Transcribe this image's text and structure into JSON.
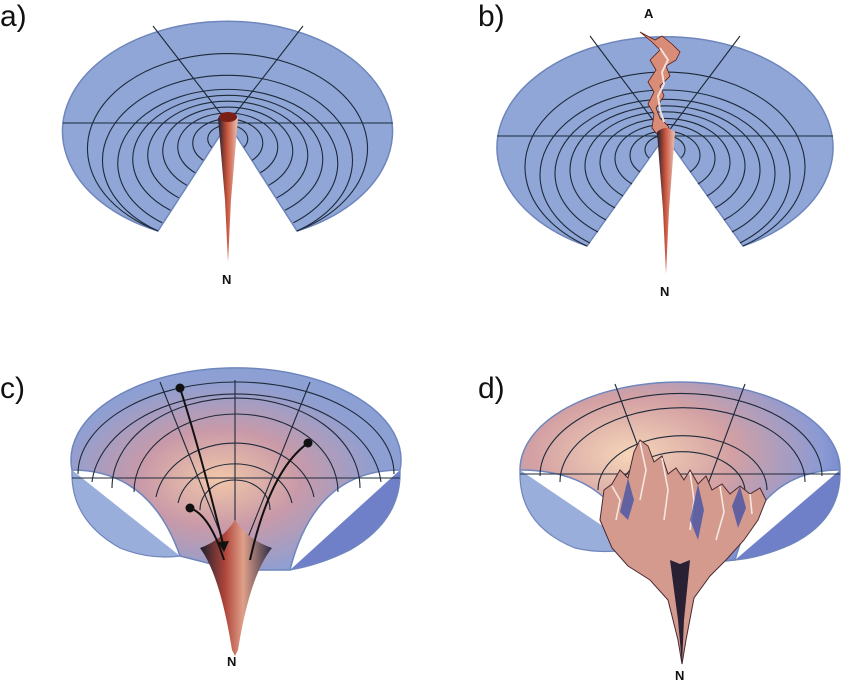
{
  "panels": [
    {
      "label": "a)",
      "node": "N"
    },
    {
      "label": "b)",
      "node": "N",
      "extra_node": "A"
    },
    {
      "label": "c)",
      "node": "N"
    },
    {
      "label": "d)",
      "node": "N"
    }
  ],
  "colors": {
    "surface": "#8fa6d6",
    "surface_edge": "#6f86bd",
    "funnel_red": "#c8523a",
    "funnel_light": "#e9c4b6",
    "funnel_dark": "#1c1f2e",
    "grid": "#1e2a3a"
  }
}
